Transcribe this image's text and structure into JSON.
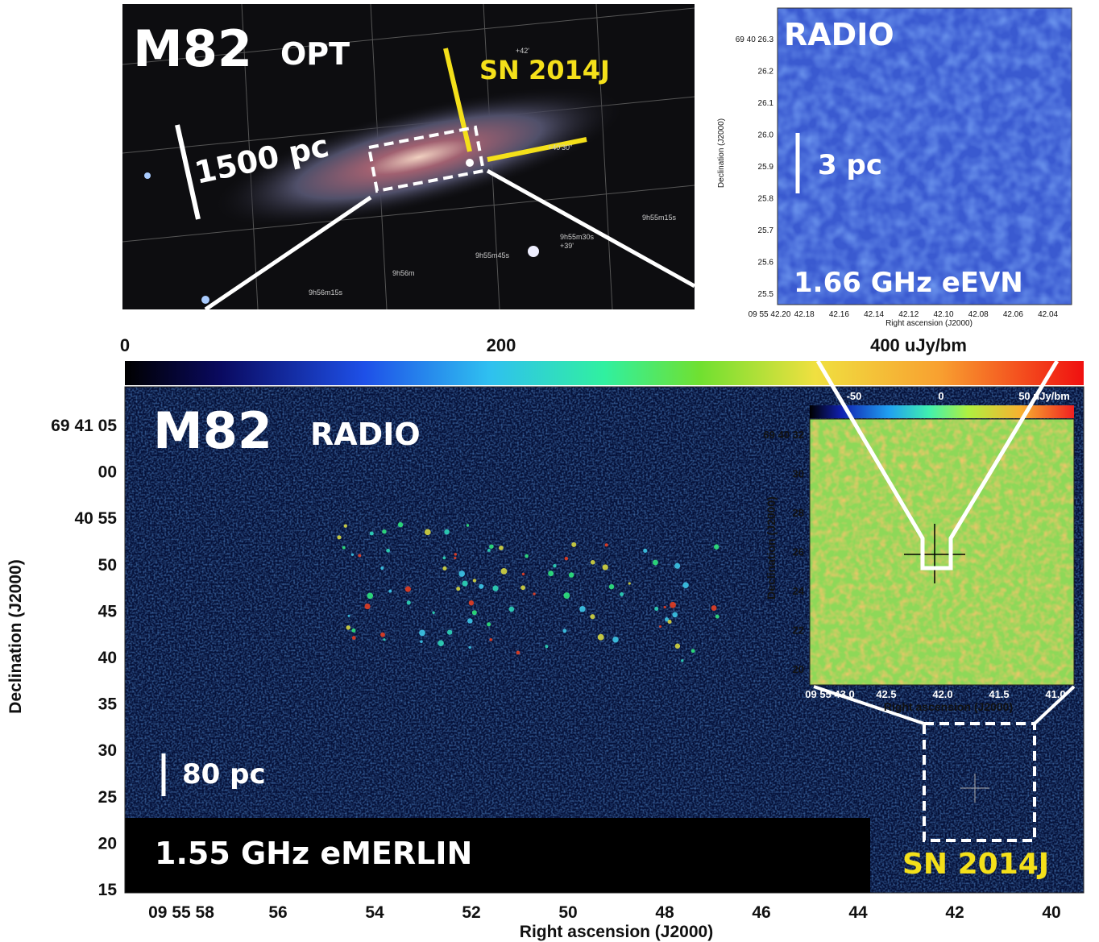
{
  "optical_panel": {
    "title": "M82",
    "band": "OPT",
    "target": "SN 2014J",
    "scale": "1500 pc",
    "grid_labels": [
      "+42'",
      "+40'30\"",
      "+39'",
      "9h56m15s",
      "9h56m",
      "9h55m45s",
      "9h55m30s",
      "9h55m15s"
    ]
  },
  "eevn_panel": {
    "title": "RADIO",
    "scale": "3 pc",
    "label": "1.66 GHz eEVN",
    "yticks": [
      "69 40 26.3",
      "26.2",
      "26.1",
      "26.0",
      "25.9",
      "25.8",
      "25.7",
      "25.6",
      "25.5"
    ],
    "xticks": [
      "09 55 42.20",
      "42.18",
      "42.16",
      "42.14",
      "42.12",
      "42.10",
      "42.08",
      "42.06",
      "42.04"
    ],
    "ylabel": "Declination (J2000)",
    "xlabel": "Right ascension (J2000)"
  },
  "emerlin_panel": {
    "colorbar_ticks": [
      "0",
      "200",
      "400 uJy/bm"
    ],
    "title": "M82",
    "band": "RADIO",
    "scale": "80 pc",
    "label": "1.55 GHz eMERLIN",
    "target": "SN 2014J",
    "yticks": [
      "69 41 05",
      "00",
      "40 55",
      "50",
      "45",
      "40",
      "35",
      "30",
      "25",
      "20",
      "15"
    ],
    "xticks": [
      "09 55 58",
      "56",
      "54",
      "52",
      "50",
      "48",
      "46",
      "44",
      "42",
      "40"
    ],
    "ylabel": "Declination (J2000)",
    "xlabel": "Right ascension (J2000)"
  },
  "inset_panel": {
    "colorbar_ticks": [
      "-50",
      "0",
      "50 uJy/bm"
    ],
    "yticks": [
      "69 40 32",
      "30",
      "28",
      "26",
      "24",
      "22",
      "20"
    ],
    "xticks": [
      "09 55 43.0",
      "42.5",
      "42.0",
      "41.5",
      "41.0"
    ],
    "ylabel": "Declination (J2000)",
    "xlabel": "Right ascension (J2000)"
  }
}
